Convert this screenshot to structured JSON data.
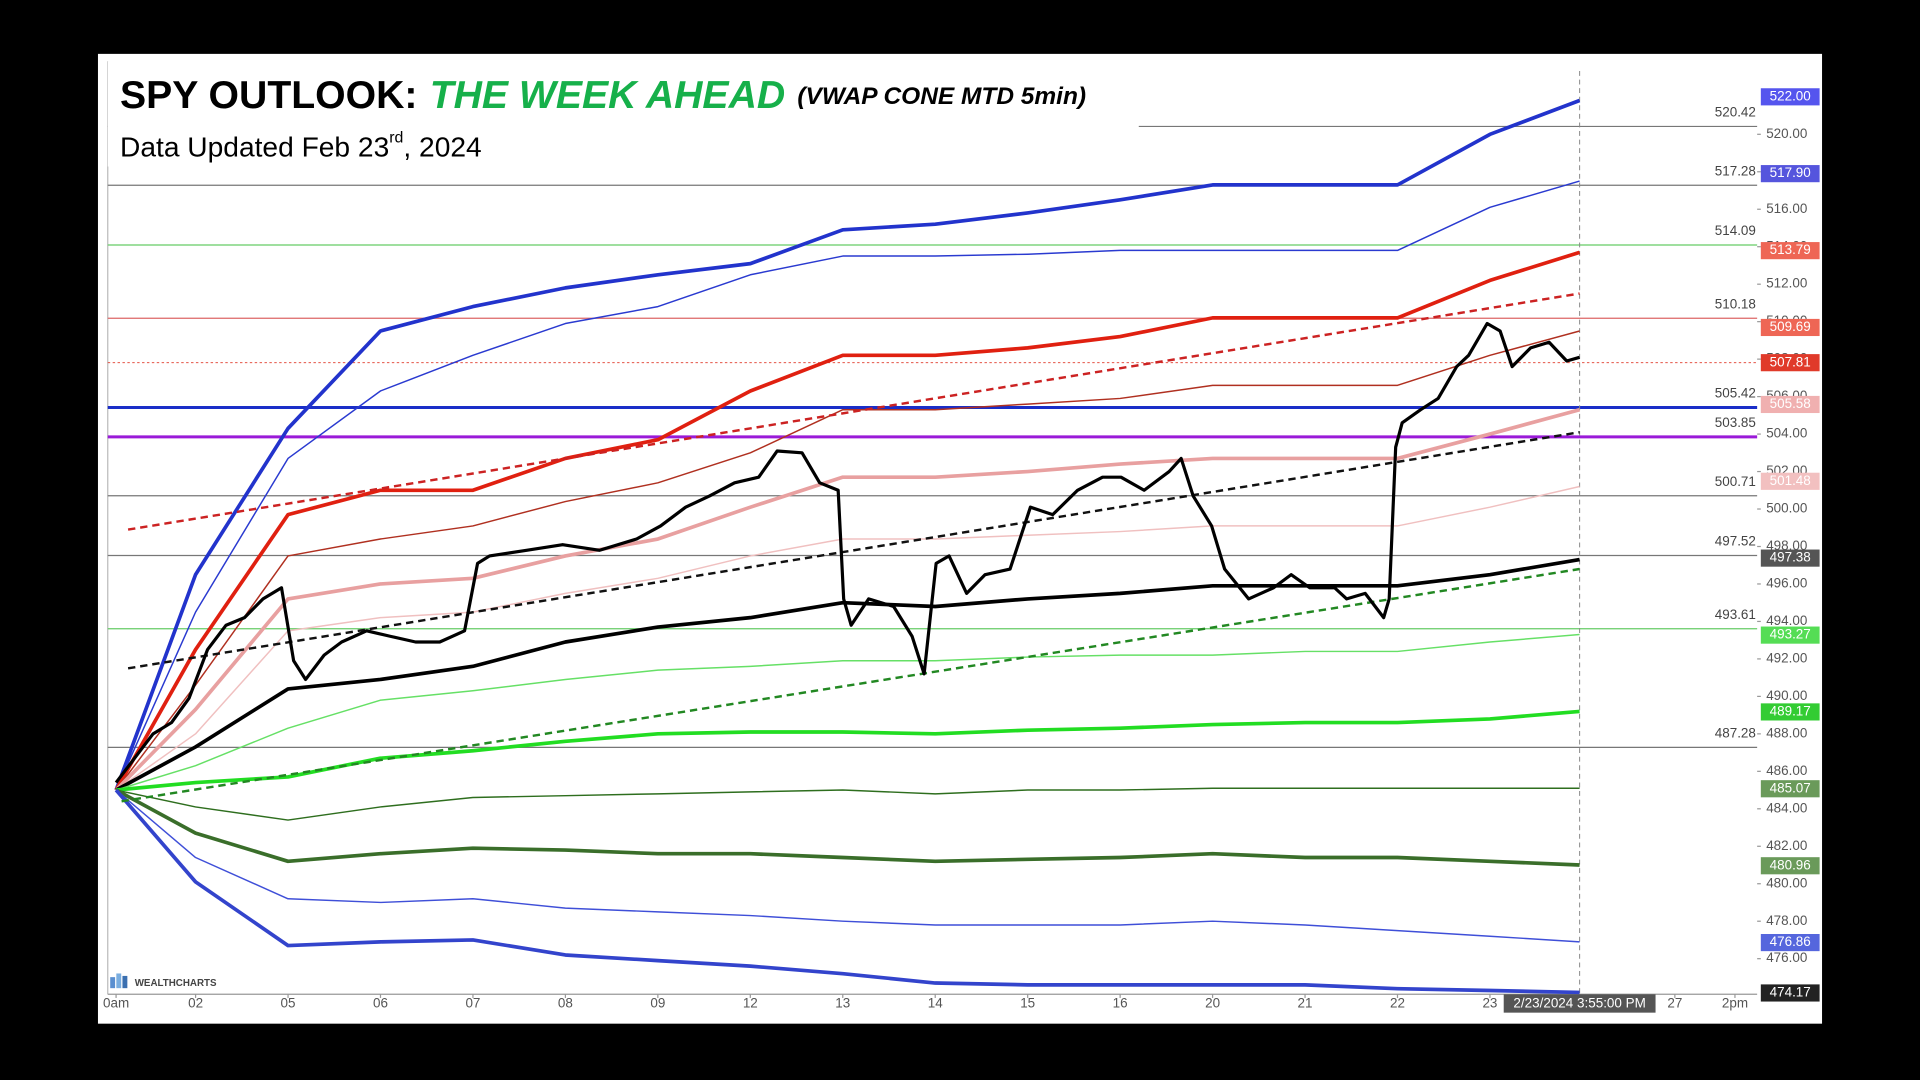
{
  "chart_data": {
    "type": "line",
    "title": "SPY OUTLOOK:",
    "title_highlight": "THE WEEK AHEAD",
    "title_note": "(VWAP CONE MTD 5min)",
    "subtitle": "Data Updated Feb 23",
    "subtitle_sup": "rd",
    "subtitle_end": ", 2024",
    "watermark": "WEALTHCHARTS",
    "xlim": [
      0.05,
      17.89
    ],
    "ylim": [
      474.1,
      523.9
    ],
    "xticks": [
      {
        "value": 0.14,
        "label": "0am"
      },
      {
        "value": 1,
        "label": "02"
      },
      {
        "value": 2,
        "label": "05"
      },
      {
        "value": 3,
        "label": "06"
      },
      {
        "value": 4,
        "label": "07"
      },
      {
        "value": 5,
        "label": "08"
      },
      {
        "value": 6,
        "label": "09"
      },
      {
        "value": 7,
        "label": "12"
      },
      {
        "value": 8,
        "label": "13"
      },
      {
        "value": 9,
        "label": "14"
      },
      {
        "value": 10,
        "label": "15"
      },
      {
        "value": 11,
        "label": "16"
      },
      {
        "value": 12,
        "label": "20"
      },
      {
        "value": 13,
        "label": "21"
      },
      {
        "value": 14,
        "label": "22"
      },
      {
        "value": 15,
        "label": "23"
      },
      {
        "value": 17,
        "label": "27"
      },
      {
        "value": 17.65,
        "label": "2pm"
      }
    ],
    "yticks": [
      {
        "value": 476,
        "label": "476.00"
      },
      {
        "value": 478,
        "label": "478.00"
      },
      {
        "value": 480,
        "label": "480.00"
      },
      {
        "value": 482,
        "label": "482.00"
      },
      {
        "value": 484,
        "label": "484.00"
      },
      {
        "value": 486,
        "label": "486.00"
      },
      {
        "value": 488,
        "label": "488.00"
      },
      {
        "value": 490,
        "label": "490.00"
      },
      {
        "value": 492,
        "label": "492.00"
      },
      {
        "value": 494,
        "label": "494.00"
      },
      {
        "value": 496,
        "label": "496.00"
      },
      {
        "value": 498,
        "label": "498.00"
      },
      {
        "value": 500,
        "label": "500.00"
      },
      {
        "value": 502,
        "label": "502.00"
      },
      {
        "value": 504,
        "label": "504.00"
      },
      {
        "value": 506,
        "label": "506.00"
      },
      {
        "value": 508,
        "label": "508.00"
      },
      {
        "value": 510,
        "label": "510.00"
      },
      {
        "value": 512,
        "label": "512.00"
      },
      {
        "value": 514,
        "label": "514.00"
      },
      {
        "value": 516,
        "label": "516.00"
      },
      {
        "value": 518,
        "label": "518.00"
      },
      {
        "value": 520,
        "label": "520.00"
      }
    ],
    "crosshair": {
      "x": 15.97,
      "label": "2/23/2024 3:55:00 PM"
    },
    "levels": [
      {
        "value": 520.42,
        "color": "#777777",
        "style": "line"
      },
      {
        "value": 517.28,
        "color": "#777777",
        "style": "line"
      },
      {
        "value": 514.09,
        "color": "#66cc66",
        "style": "line"
      },
      {
        "value": 510.18,
        "color": "#dd6666",
        "style": "line"
      },
      {
        "value": 505.42,
        "color": "#1a2ec8",
        "style": "bold"
      },
      {
        "value": 503.85,
        "color": "#9a1ad8",
        "style": "bold"
      },
      {
        "value": 500.71,
        "color": "#777777",
        "style": "line"
      },
      {
        "value": 497.52,
        "color": "#777777",
        "style": "line"
      },
      {
        "value": 493.61,
        "color": "#66cc66",
        "style": "line"
      },
      {
        "value": 487.28,
        "color": "#777777",
        "style": "line"
      }
    ],
    "x": [
      0.14,
      1,
      2,
      3,
      4,
      5,
      6,
      7,
      8,
      9,
      10,
      11,
      12,
      13,
      14,
      15,
      15.97
    ],
    "series": [
      {
        "color": "#2233cc",
        "style": "thick",
        "values": [
          485.0,
          496.5,
          504.3,
          509.5,
          510.8,
          511.8,
          512.5,
          513.1,
          514.9,
          515.2,
          515.8,
          516.5,
          517.3,
          517.3,
          517.3,
          520.0,
          521.8
        ]
      },
      {
        "color": "#2a3ad0",
        "style": "thin",
        "values": [
          485.0,
          494.5,
          502.7,
          506.3,
          508.2,
          509.9,
          510.8,
          512.5,
          513.5,
          513.5,
          513.6,
          513.8,
          513.8,
          513.8,
          513.8,
          516.1,
          517.5
        ]
      },
      {
        "color": "#e02010",
        "style": "thick",
        "values": [
          485.0,
          492.5,
          499.7,
          501.0,
          501.0,
          502.7,
          503.7,
          506.3,
          508.2,
          508.2,
          508.6,
          509.2,
          510.2,
          510.2,
          510.2,
          512.2,
          513.7
        ]
      },
      {
        "color": "#b03020",
        "style": "thin",
        "values": [
          485.0,
          490.6,
          497.5,
          498.4,
          499.1,
          500.4,
          501.4,
          503.0,
          505.3,
          505.3,
          505.6,
          505.9,
          506.6,
          506.6,
          506.6,
          508.2,
          509.5
        ]
      },
      {
        "color": "#e8a0a0",
        "style": "thick",
        "values": [
          485.0,
          489.3,
          495.2,
          496.0,
          496.3,
          497.5,
          498.4,
          500.1,
          501.7,
          501.7,
          502.0,
          502.4,
          502.7,
          502.7,
          502.7,
          504.0,
          505.3
        ]
      },
      {
        "color": "#f0c0c0",
        "style": "thin",
        "values": [
          485.0,
          488.0,
          493.5,
          494.2,
          494.5,
          495.5,
          496.3,
          497.5,
          498.4,
          498.4,
          498.6,
          498.8,
          499.1,
          499.1,
          499.1,
          500.1,
          501.2
        ]
      },
      {
        "color": "#000000",
        "style": "thick",
        "values": [
          485.0,
          487.3,
          490.4,
          490.9,
          491.6,
          492.9,
          493.7,
          494.2,
          495.0,
          494.8,
          495.2,
          495.5,
          495.9,
          495.9,
          495.9,
          496.5,
          497.3
        ]
      },
      {
        "color": "#66e066",
        "style": "thin",
        "values": [
          485.0,
          486.3,
          488.3,
          489.8,
          490.3,
          490.9,
          491.4,
          491.6,
          491.9,
          491.9,
          492.1,
          492.2,
          492.2,
          492.4,
          492.4,
          492.9,
          493.3
        ]
      },
      {
        "color": "#22dd22",
        "style": "thick",
        "values": [
          485.0,
          485.4,
          485.7,
          486.7,
          487.1,
          487.6,
          488.0,
          488.1,
          488.1,
          488.0,
          488.2,
          488.3,
          488.5,
          488.6,
          488.6,
          488.8,
          489.2
        ]
      },
      {
        "color": "#2e6e1e",
        "style": "thin",
        "values": [
          485.0,
          484.1,
          483.4,
          484.1,
          484.6,
          484.7,
          484.8,
          484.9,
          485.0,
          484.8,
          485.0,
          485.0,
          485.1,
          485.1,
          485.1,
          485.1,
          485.1
        ]
      },
      {
        "color": "#3a6e2a",
        "style": "thick",
        "values": [
          485.0,
          482.7,
          481.2,
          481.6,
          481.9,
          481.8,
          481.6,
          481.6,
          481.4,
          481.2,
          481.3,
          481.4,
          481.6,
          481.4,
          481.4,
          481.2,
          481.0
        ]
      },
      {
        "color": "#3f4fd8",
        "style": "thin",
        "values": [
          485.0,
          481.4,
          479.2,
          479.0,
          479.2,
          478.7,
          478.5,
          478.3,
          478.0,
          477.8,
          477.8,
          477.8,
          478.0,
          477.8,
          477.5,
          477.2,
          476.9
        ]
      },
      {
        "color": "#3344cc",
        "style": "thick",
        "values": [
          485.0,
          480.1,
          476.7,
          476.9,
          477.0,
          476.2,
          475.9,
          475.6,
          475.2,
          474.7,
          474.6,
          474.6,
          474.6,
          474.6,
          474.4,
          474.3,
          474.2
        ]
      },
      {
        "color": "#cc2222",
        "style": "dashed",
        "x": [
          0.27,
          15.97
        ],
        "values": [
          498.9,
          511.5
        ]
      },
      {
        "color": "#111111",
        "style": "dashed",
        "x": [
          0.27,
          15.97
        ],
        "values": [
          491.5,
          504.1
        ]
      },
      {
        "color": "#228822",
        "style": "dashed",
        "x": [
          0.2,
          15.97
        ],
        "values": [
          484.4,
          496.8
        ]
      },
      {
        "color": "#000000",
        "style": "price",
        "x": [
          0.14,
          0.34,
          0.54,
          0.74,
          0.93,
          1.13,
          1.33,
          1.53,
          1.73,
          1.93,
          2.06,
          2.19,
          2.39,
          2.58,
          2.85,
          3.11,
          3.38,
          3.64,
          3.91,
          4.05,
          4.18,
          4.58,
          4.97,
          5.37,
          5.77,
          6.03,
          6.3,
          6.56,
          6.83,
          7.09,
          7.29,
          7.56,
          7.75,
          7.95,
          8.01,
          8.09,
          8.28,
          8.55,
          8.75,
          8.88,
          9.01,
          9.15,
          9.34,
          9.54,
          9.81,
          10.03,
          10.27,
          10.54,
          10.81,
          11.01,
          11.26,
          11.53,
          11.66,
          11.79,
          11.99,
          12.13,
          12.39,
          12.66,
          12.85,
          13.05,
          13.32,
          13.45,
          13.65,
          13.85,
          13.91,
          13.98,
          14.05,
          14.25,
          14.44,
          14.64,
          14.77,
          14.97,
          15.11,
          15.24,
          15.44,
          15.64,
          15.83,
          15.97
        ],
        "values": [
          485.4,
          486.7,
          488.0,
          488.6,
          489.9,
          492.5,
          493.8,
          494.2,
          495.2,
          495.8,
          491.9,
          490.9,
          492.2,
          492.9,
          493.5,
          493.2,
          492.9,
          492.9,
          493.5,
          497.1,
          497.5,
          497.8,
          498.1,
          497.8,
          498.4,
          499.1,
          500.1,
          500.7,
          501.4,
          501.7,
          503.1,
          503.0,
          501.4,
          501.0,
          495.2,
          493.8,
          495.2,
          494.8,
          493.2,
          491.2,
          497.1,
          497.5,
          495.5,
          496.5,
          496.8,
          500.1,
          499.7,
          501.0,
          501.7,
          501.7,
          501.0,
          502.0,
          502.7,
          500.7,
          499.1,
          496.8,
          495.2,
          495.8,
          496.5,
          495.8,
          495.8,
          495.2,
          495.5,
          494.2,
          495.2,
          503.3,
          504.6,
          505.3,
          505.9,
          507.6,
          508.2,
          509.9,
          509.5,
          507.6,
          508.6,
          508.9,
          507.9,
          508.1
        ]
      }
    ],
    "price_line": {
      "value": 507.81,
      "color": "#e03a2a"
    },
    "tags": [
      {
        "value": 522,
        "label": "522.00",
        "color": "#5555ee"
      },
      {
        "value": 517.9,
        "label": "517.90",
        "color": "#5555dd"
      },
      {
        "value": 513.79,
        "color": "#ee6655"
      },
      {
        "value": 509.69,
        "color": "#ee6655"
      },
      {
        "value": 507.81,
        "color": "#e03a2a"
      },
      {
        "value": 505.58,
        "color": "#f0b0b0"
      },
      {
        "value": 501.48,
        "color": "#f2c0c0"
      },
      {
        "value": 497.38,
        "color": "#555555"
      },
      {
        "value": 493.27,
        "color": "#55dd55"
      },
      {
        "value": 489.17,
        "color": "#33cc33"
      },
      {
        "value": 485.07,
        "color": "#6a9a5a"
      },
      {
        "value": 480.96,
        "color": "#6a9a5a"
      },
      {
        "value": 476.86,
        "color": "#5566dd"
      },
      {
        "value": 474.17,
        "color": "#222222"
      }
    ]
  }
}
